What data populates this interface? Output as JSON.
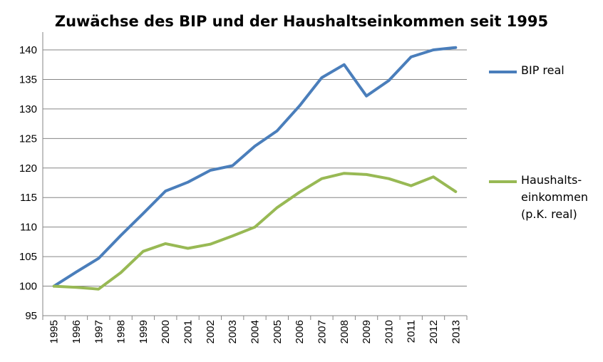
{
  "chart_data": {
    "type": "line",
    "title": "Zuwächse des BIP und der  Haushaltseinkommen seit 1995",
    "xlabel": "",
    "ylabel": "",
    "ylim": [
      95,
      140
    ],
    "yticks": [
      95,
      100,
      105,
      110,
      115,
      120,
      125,
      130,
      135,
      140
    ],
    "grid": true,
    "legend_position": "right",
    "categories": [
      "1995",
      "1996",
      "1997",
      "1998",
      "1999",
      "2000",
      "2001",
      "2002",
      "2003",
      "2004",
      "2005",
      "2006",
      "2007",
      "2008",
      "2009",
      "2010",
      "2011",
      "2012",
      "2013"
    ],
    "series": [
      {
        "name": "BIP real",
        "legend_lines": [
          "BIP real"
        ],
        "color": "#4a7ebb",
        "values": [
          100,
          102.4,
          104.7,
          108.6,
          112.3,
          116.1,
          117.6,
          119.6,
          120.4,
          123.7,
          126.3,
          130.5,
          135.3,
          137.5,
          132.2,
          134.8,
          138.8,
          140.0,
          140.4
        ]
      },
      {
        "name": "Haushalts-einkommen (p.K. real)",
        "legend_lines": [
          "Haushalts-",
          "einkommen",
          "(p.K. real)"
        ],
        "color": "#98b954",
        "values": [
          100,
          99.8,
          99.5,
          102.3,
          105.9,
          107.2,
          106.4,
          107.1,
          108.5,
          110.0,
          113.3,
          115.9,
          118.2,
          119.1,
          118.9,
          118.2,
          117.0,
          118.5,
          116.0
        ]
      }
    ]
  }
}
